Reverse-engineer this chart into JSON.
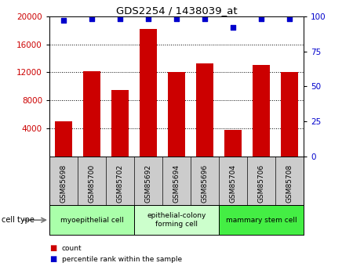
{
  "title": "GDS2254 / 1438039_at",
  "samples": [
    "GSM85698",
    "GSM85700",
    "GSM85702",
    "GSM85692",
    "GSM85694",
    "GSM85696",
    "GSM85704",
    "GSM85706",
    "GSM85708"
  ],
  "counts": [
    5000,
    12200,
    9500,
    18200,
    12100,
    13300,
    3800,
    13000,
    12000
  ],
  "percentiles": [
    97,
    98,
    98,
    98,
    98,
    98,
    92,
    98,
    98
  ],
  "cell_types": [
    {
      "label": "myoepithelial cell",
      "start": 0,
      "end": 3,
      "color": "#aaffaa"
    },
    {
      "label": "epithelial-colony\nforming cell",
      "start": 3,
      "end": 6,
      "color": "#ccffcc"
    },
    {
      "label": "mammary stem cell",
      "start": 6,
      "end": 9,
      "color": "#44ee44"
    }
  ],
  "bar_color": "#cc0000",
  "dot_color": "#0000cc",
  "ylim_left": [
    0,
    20000
  ],
  "ylim_right": [
    0,
    100
  ],
  "yticks_left": [
    4000,
    8000,
    12000,
    16000,
    20000
  ],
  "yticks_right": [
    0,
    25,
    50,
    75,
    100
  ],
  "ylabel_left_color": "#cc0000",
  "ylabel_right_color": "#0000cc",
  "tick_label_area_color": "#cccccc",
  "legend_count_color": "#cc0000",
  "legend_pct_color": "#0000cc"
}
